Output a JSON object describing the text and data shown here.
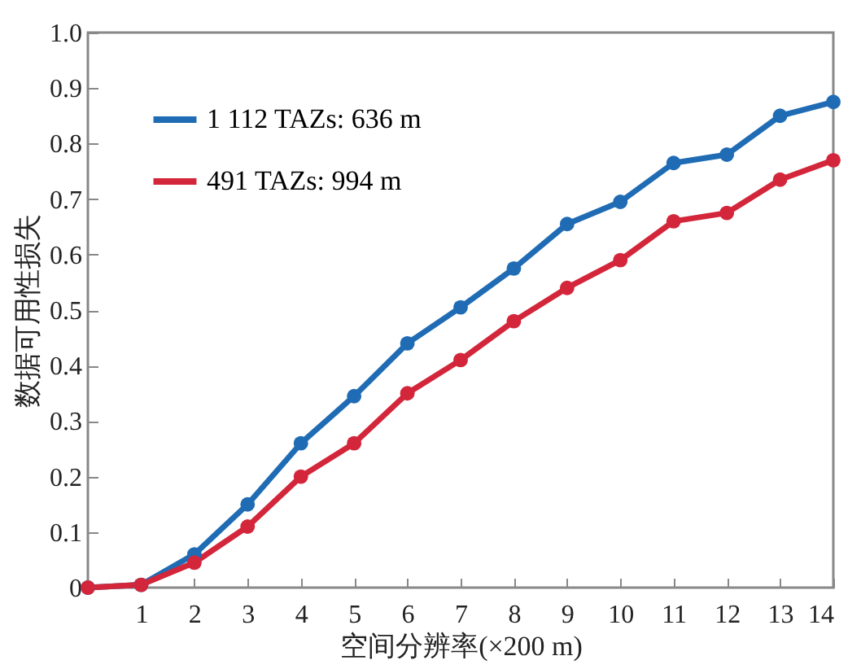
{
  "chart_data": {
    "type": "line",
    "xlabel": "空间分辨率(×200 m)",
    "ylabel": "数据可用性损失",
    "x": [
      0,
      1,
      2,
      3,
      4,
      5,
      6,
      7,
      8,
      9,
      10,
      11,
      12,
      13,
      14
    ],
    "series": [
      {
        "name": "1 112 TAZs: 636 m",
        "color": "#1f6cb5",
        "values": [
          0,
          0.005,
          0.06,
          0.15,
          0.26,
          0.345,
          0.44,
          0.505,
          0.575,
          0.655,
          0.695,
          0.765,
          0.78,
          0.85,
          0.875
        ]
      },
      {
        "name": "491 TAZs: 994 m",
        "color": "#d3263a",
        "values": [
          0,
          0.005,
          0.045,
          0.11,
          0.2,
          0.26,
          0.35,
          0.41,
          0.48,
          0.54,
          0.59,
          0.66,
          0.675,
          0.735,
          0.77
        ]
      }
    ],
    "xlim": [
      0,
      14
    ],
    "xticks": [
      1,
      2,
      3,
      4,
      5,
      6,
      7,
      8,
      9,
      10,
      11,
      12,
      13,
      14
    ],
    "ylim": [
      0,
      1
    ],
    "yticks": [
      0,
      0.1,
      0.2,
      0.3,
      0.4,
      0.5,
      0.6,
      0.7,
      0.8,
      0.9,
      {
        "value": 1,
        "label": "1.0"
      }
    ],
    "legend": "top left",
    "marker": "circle",
    "line_style": "solid",
    "grid": false
  }
}
